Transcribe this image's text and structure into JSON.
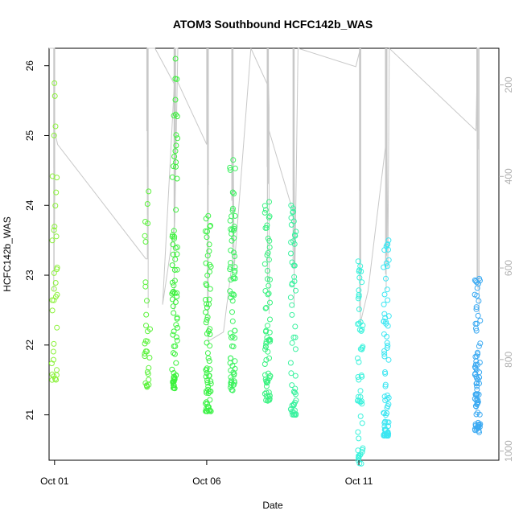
{
  "chart_data": {
    "type": "scatter",
    "title": "ATOM3 Southbound HCFC142b_WAS",
    "xlabel": "Date",
    "ylabel": "HCFC142b_WAS",
    "x_tick_labels": [
      {
        "day": 1,
        "label": "Oct 01"
      },
      {
        "day": 6,
        "label": "Oct 06"
      },
      {
        "day": 11,
        "label": "Oct 11"
      }
    ],
    "y_ticks": [
      21,
      22,
      23,
      24,
      25,
      26
    ],
    "y_range": [
      20.35,
      26.25
    ],
    "x_range": [
      0.82,
      15.6
    ],
    "right_axis": {
      "ticks": [
        200,
        400,
        600,
        800,
        1000
      ],
      "range": [
        1020,
        120
      ],
      "color": "#b0b0b0"
    },
    "point_color_scale": [
      "#99ff33",
      "#33ff33",
      "#33ff99",
      "#33ffff",
      "#3399ff"
    ],
    "clusters": [
      {
        "day": 1.0,
        "min": 21.5,
        "max": 25.75,
        "n": 34,
        "color": "#8cf23c"
      },
      {
        "day": 4.05,
        "min": 21.4,
        "max": 24.2,
        "n": 30,
        "color": "#5cf23c"
      },
      {
        "day": 4.95,
        "min": 21.38,
        "max": 26.1,
        "n": 80,
        "color": "#3cf23c"
      },
      {
        "day": 6.05,
        "min": 21.05,
        "max": 23.85,
        "n": 70,
        "color": "#3cf246"
      },
      {
        "day": 6.85,
        "min": 21.35,
        "max": 24.65,
        "n": 70,
        "color": "#3cf25f"
      },
      {
        "day": 8.0,
        "min": 21.2,
        "max": 24.05,
        "n": 70,
        "color": "#3cf282"
      },
      {
        "day": 8.85,
        "min": 21.0,
        "max": 24.0,
        "n": 55,
        "color": "#3cf2a0"
      },
      {
        "day": 11.05,
        "min": 20.3,
        "max": 23.2,
        "n": 55,
        "color": "#3cf2dc"
      },
      {
        "day": 11.9,
        "min": 20.7,
        "max": 23.5,
        "n": 75,
        "color": "#3ce6f2"
      },
      {
        "day": 14.9,
        "min": 20.75,
        "max": 22.95,
        "n": 80,
        "color": "#3caaf2"
      }
    ],
    "altitude_track": [
      [
        0.82,
        120
      ],
      [
        1.0,
        120
      ],
      [
        1.0,
        300
      ],
      [
        1.1,
        330
      ],
      [
        4.0,
        580
      ],
      [
        4.05,
        580
      ],
      [
        4.05,
        540
      ],
      [
        4.05,
        120
      ],
      [
        4.3,
        120
      ],
      [
        4.95,
        200
      ],
      [
        4.95,
        120
      ],
      [
        5.05,
        120
      ],
      [
        4.95,
        500
      ],
      [
        4.55,
        680
      ],
      [
        4.95,
        180
      ],
      [
        6.0,
        330
      ],
      [
        6.0,
        120
      ],
      [
        6.05,
        300
      ],
      [
        6.05,
        760
      ],
      [
        6.55,
        740
      ],
      [
        6.85,
        580
      ],
      [
        6.85,
        120
      ],
      [
        6.85,
        150
      ],
      [
        6.9,
        600
      ],
      [
        7.45,
        120
      ],
      [
        8.0,
        200
      ],
      [
        8.0,
        120
      ],
      [
        8.05,
        250
      ],
      [
        8.05,
        700
      ],
      [
        8.05,
        300
      ],
      [
        8.85,
        480
      ],
      [
        8.85,
        120
      ],
      [
        8.85,
        200
      ],
      [
        8.9,
        600
      ],
      [
        9.0,
        120
      ],
      [
        10.9,
        160
      ],
      [
        11.05,
        120
      ],
      [
        11.05,
        350
      ],
      [
        11.05,
        720
      ],
      [
        11.3,
        650
      ],
      [
        11.9,
        320
      ],
      [
        11.9,
        120
      ],
      [
        11.95,
        600
      ],
      [
        12.0,
        120
      ],
      [
        14.85,
        300
      ],
      [
        14.9,
        120
      ],
      [
        14.95,
        120
      ],
      [
        14.95,
        700
      ]
    ],
    "grid": false,
    "legend": "none"
  }
}
